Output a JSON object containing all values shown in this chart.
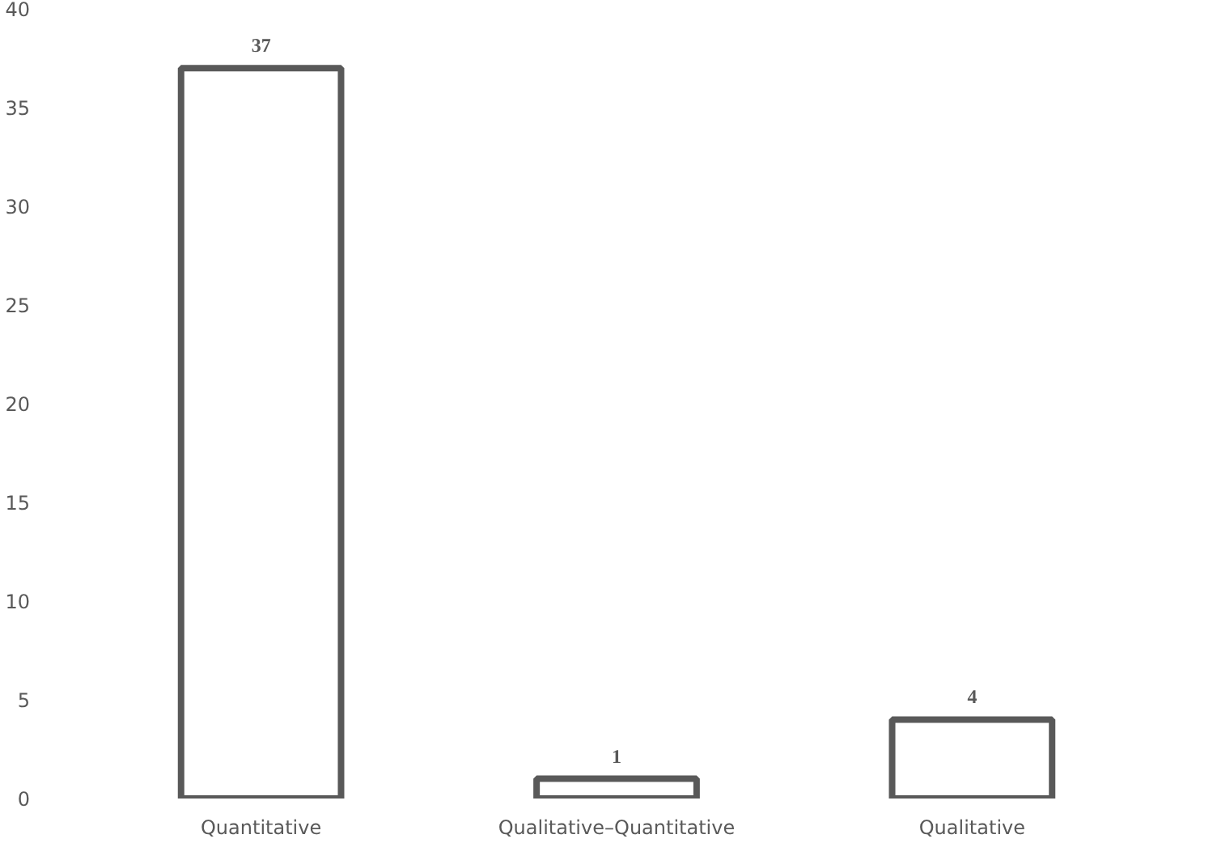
{
  "chart_data": {
    "type": "bar",
    "categories": [
      "Quantitative",
      "Qualitative–Quantitative",
      "Qualitative"
    ],
    "values": [
      37,
      1,
      4
    ],
    "color": "#595959",
    "ylim": [
      0,
      40
    ],
    "yticks": [
      0,
      5,
      10,
      15,
      20,
      25,
      30,
      35,
      40
    ],
    "grid": false,
    "data_labels": true
  }
}
